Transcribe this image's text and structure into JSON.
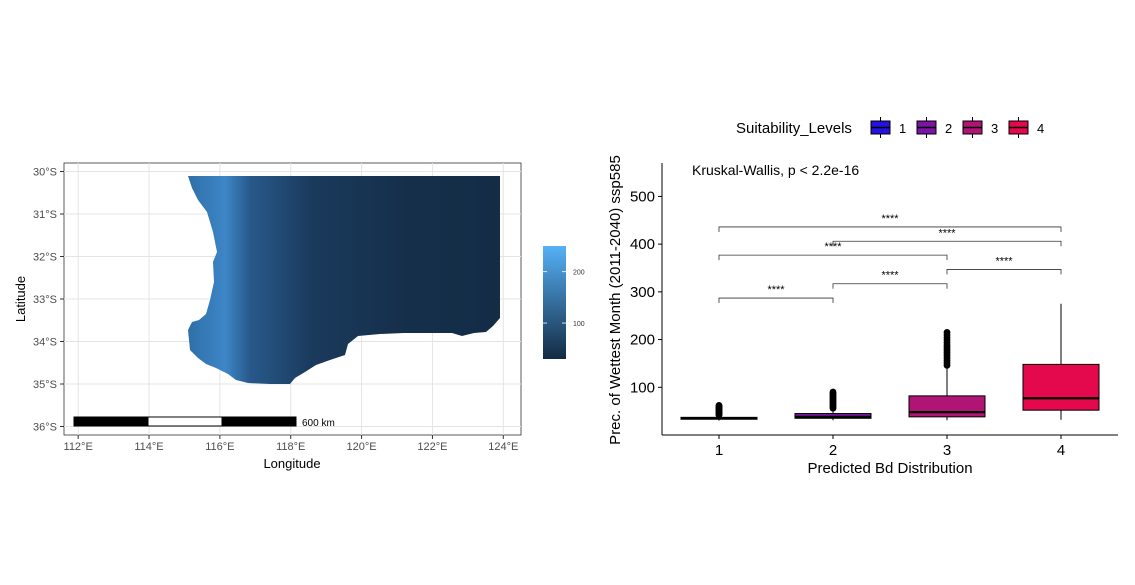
{
  "chart_data": [
    {
      "type": "heatmap",
      "xlabel": "Longitude",
      "ylabel": "Latitude",
      "x_ticks": [
        "112°E",
        "114°E",
        "116°E",
        "118°E",
        "120°E",
        "122°E",
        "124°E"
      ],
      "x_tick_values": [
        112,
        114,
        116,
        118,
        120,
        122,
        124
      ],
      "y_ticks": [
        "30°S",
        "31°S",
        "32°S",
        "33°S",
        "34°S",
        "35°S",
        "36°S"
      ],
      "y_tick_values": [
        -30,
        -31,
        -32,
        -33,
        -34,
        -35,
        -36
      ],
      "xlim": [
        111.6,
        124.5
      ],
      "ylim": [
        -36.2,
        -29.8
      ],
      "colorbar": {
        "ticks": [
          "100",
          "200"
        ],
        "tick_values": [
          100,
          200
        ],
        "range": [
          30,
          250
        ],
        "low_color": "#132b43",
        "high_color": "#56b1f7"
      },
      "scalebar": {
        "label": "600 km"
      },
      "grid": true
    },
    {
      "type": "box",
      "xlabel": "Predicted Bd Distribution",
      "ylabel": "Prec. of Wettest Month (2011-2040) ssp585",
      "categories": [
        "1",
        "2",
        "3",
        "4"
      ],
      "y_ticks": [
        "100",
        "200",
        "300",
        "400",
        "500"
      ],
      "y_tick_values": [
        100,
        200,
        300,
        400,
        500
      ],
      "ylim": [
        0,
        570
      ],
      "legend": {
        "title": "Suitability_Levels",
        "position": "top",
        "items": [
          "1",
          "2",
          "3",
          "4"
        ]
      },
      "colors": [
        "#2312e0",
        "#7c14a6",
        "#b01575",
        "#e3094c"
      ],
      "annotation": "Kruskal-Wallis, p < 2.2e-16",
      "series": [
        {
          "category": "1",
          "q1": 33,
          "median": 35,
          "q3": 37,
          "whisker_low": 30,
          "whisker_high": 40,
          "outlier_min": 42,
          "outlier_max": 62
        },
        {
          "category": "2",
          "q1": 35,
          "median": 38,
          "q3": 45,
          "whisker_low": 31,
          "whisker_high": 55,
          "outlier_min": 56,
          "outlier_max": 90
        },
        {
          "category": "3",
          "q1": 38,
          "median": 48,
          "q3": 82,
          "whisker_low": 31,
          "whisker_high": 145,
          "outlier_min": 146,
          "outlier_max": 215
        },
        {
          "category": "4",
          "q1": 52,
          "median": 77,
          "q3": 148,
          "whisker_low": 32,
          "whisker_high": 275
        }
      ],
      "comparisons": [
        {
          "from": "1",
          "to": "2",
          "y": 287,
          "label": "****"
        },
        {
          "from": "2",
          "to": "3",
          "y": 317,
          "label": "****"
        },
        {
          "from": "3",
          "to": "4",
          "y": 347,
          "label": "****"
        },
        {
          "from": "1",
          "to": "3",
          "y": 377,
          "label": "****"
        },
        {
          "from": "2",
          "to": "4",
          "y": 406,
          "label": "****"
        },
        {
          "from": "1",
          "to": "4",
          "y": 436,
          "label": "****"
        }
      ]
    }
  ]
}
